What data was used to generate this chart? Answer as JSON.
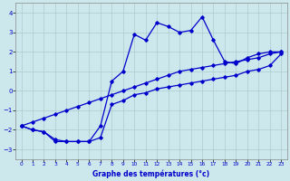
{
  "xlabel": "Graphe des températures (°c)",
  "background_color": "#cce8ec",
  "grid_color": "#aacccc",
  "line_color": "#0000cc",
  "xlim": [
    -0.5,
    23.5
  ],
  "ylim": [
    -3.5,
    4.5
  ],
  "yticks": [
    -3,
    -2,
    -1,
    0,
    1,
    2,
    3,
    4
  ],
  "xticks": [
    0,
    1,
    2,
    3,
    4,
    5,
    6,
    7,
    8,
    9,
    10,
    11,
    12,
    13,
    14,
    15,
    16,
    17,
    18,
    19,
    20,
    21,
    22,
    23
  ],
  "hours": [
    0,
    1,
    2,
    3,
    4,
    5,
    6,
    7,
    8,
    9,
    10,
    11,
    12,
    13,
    14,
    15,
    16,
    17,
    18,
    19,
    20,
    21,
    22,
    23
  ],
  "temp_max": [
    -1.8,
    -2.0,
    -2.1,
    -2.5,
    -2.6,
    -2.6,
    -2.6,
    -1.8,
    0.5,
    1.0,
    2.9,
    2.6,
    3.5,
    3.3,
    3.0,
    3.1,
    3.8,
    2.6,
    1.5,
    1.4,
    1.7,
    1.9,
    2.0,
    2.0
  ],
  "temp_min": [
    -1.8,
    -2.0,
    -2.1,
    -2.6,
    -2.6,
    -2.6,
    -2.6,
    -2.4,
    -0.7,
    -0.5,
    -0.2,
    -0.1,
    0.1,
    0.2,
    0.3,
    0.4,
    0.5,
    0.6,
    0.7,
    0.8,
    1.0,
    1.1,
    1.3,
    1.9
  ],
  "temp_diag": [
    -1.8,
    -1.6,
    -1.4,
    -1.2,
    -1.0,
    -0.8,
    -0.6,
    -0.4,
    -0.2,
    0.0,
    0.2,
    0.4,
    0.6,
    0.8,
    1.0,
    1.1,
    1.2,
    1.3,
    1.4,
    1.5,
    1.6,
    1.7,
    1.9,
    2.0
  ]
}
